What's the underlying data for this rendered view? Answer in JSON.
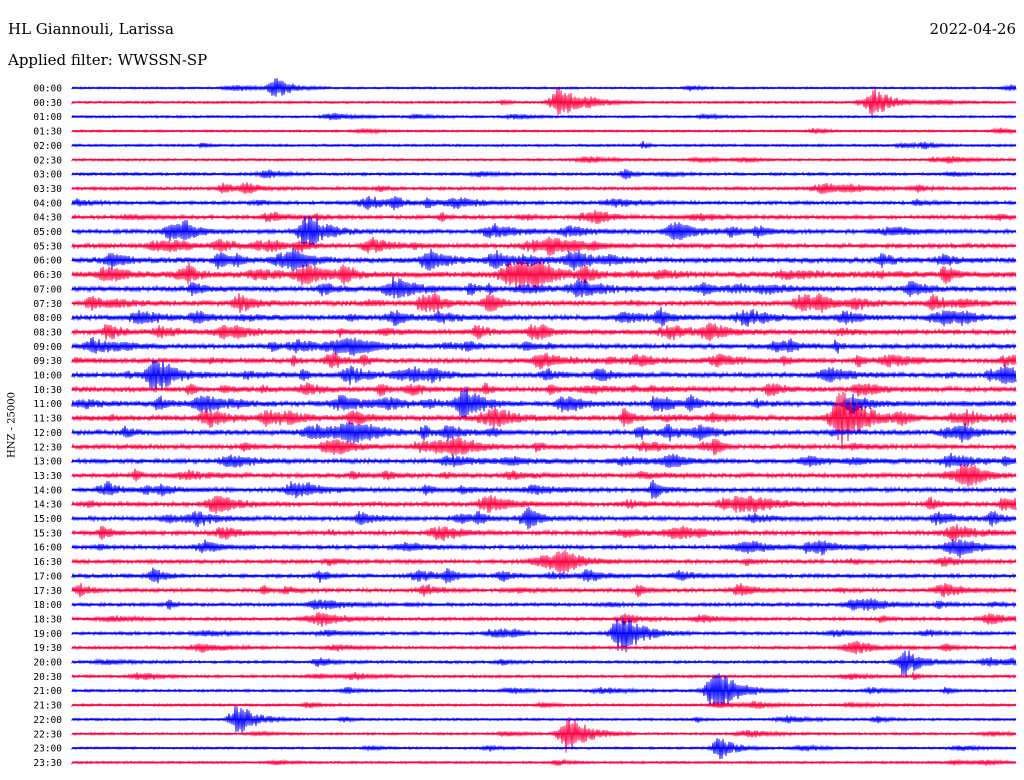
{
  "header": {
    "station": "HL Giannouli, Larissa",
    "date": "2022-04-26",
    "filter": "Applied filter: WWSSN-SP"
  },
  "axis": {
    "channel_label": "HNZ - 25000"
  },
  "colors": {
    "even_trace": "#0000ff",
    "odd_trace": "#ff0040",
    "background": "#ffffff"
  },
  "chart_data": {
    "type": "line",
    "title": "HL Giannouli, Larissa",
    "subtitle": "Applied filter: WWSSN-SP",
    "ylabel": "HNZ - 25000",
    "xlabel": "",
    "row_labels": [
      "00:00",
      "00:30",
      "01:00",
      "01:30",
      "02:00",
      "02:30",
      "03:00",
      "03:30",
      "04:00",
      "04:30",
      "05:00",
      "05:30",
      "06:00",
      "06:30",
      "07:00",
      "07:30",
      "08:00",
      "08:30",
      "09:00",
      "09:30",
      "10:00",
      "10:30",
      "11:00",
      "11:30",
      "12:00",
      "12:30",
      "13:00",
      "13:30",
      "14:00",
      "14:30",
      "15:00",
      "15:30",
      "16:00",
      "16:30",
      "17:00",
      "17:30",
      "18:00",
      "18:30",
      "19:00",
      "19:30",
      "20:00",
      "20:30",
      "21:00",
      "21:30",
      "22:00",
      "22:30",
      "23:00",
      "23:30"
    ],
    "row_minutes": 30,
    "series": [
      {
        "color": "#0000ff",
        "rows": "even"
      },
      {
        "color": "#ff0040",
        "rows": "odd"
      }
    ],
    "relative_activity": [
      0.08,
      0.1,
      0.1,
      0.08,
      0.12,
      0.14,
      0.2,
      0.26,
      0.3,
      0.36,
      0.42,
      0.48,
      0.62,
      0.7,
      0.6,
      0.58,
      0.55,
      0.52,
      0.5,
      0.5,
      0.55,
      0.55,
      0.6,
      0.6,
      0.55,
      0.5,
      0.48,
      0.45,
      0.45,
      0.45,
      0.45,
      0.45,
      0.4,
      0.36,
      0.35,
      0.35,
      0.3,
      0.28,
      0.25,
      0.22,
      0.2,
      0.18,
      0.16,
      0.14,
      0.12,
      0.12,
      0.1,
      0.1
    ],
    "notable_events": [
      {
        "row": "00:00",
        "minute": 6.5,
        "amplitude": 0.6
      },
      {
        "row": "00:30",
        "minute": 15.5,
        "amplitude": 0.9
      },
      {
        "row": "00:30",
        "minute": 25.5,
        "amplitude": 0.8
      },
      {
        "row": "05:00",
        "minute": 7.5,
        "amplitude": 1.0
      },
      {
        "row": "10:00",
        "minute": 2.7,
        "amplitude": 1.0
      },
      {
        "row": "11:30",
        "minute": 24.5,
        "amplitude": 1.6
      },
      {
        "row": "11:00",
        "minute": 12.5,
        "amplitude": 0.9
      },
      {
        "row": "19:00",
        "minute": 17.5,
        "amplitude": 1.2
      },
      {
        "row": "20:00",
        "minute": 26.5,
        "amplitude": 0.8
      },
      {
        "row": "21:00",
        "minute": 20.5,
        "amplitude": 1.3
      },
      {
        "row": "22:00",
        "minute": 5.3,
        "amplitude": 0.9
      },
      {
        "row": "22:30",
        "minute": 15.8,
        "amplitude": 1.1
      },
      {
        "row": "23:00",
        "minute": 20.6,
        "amplitude": 0.6
      }
    ]
  }
}
